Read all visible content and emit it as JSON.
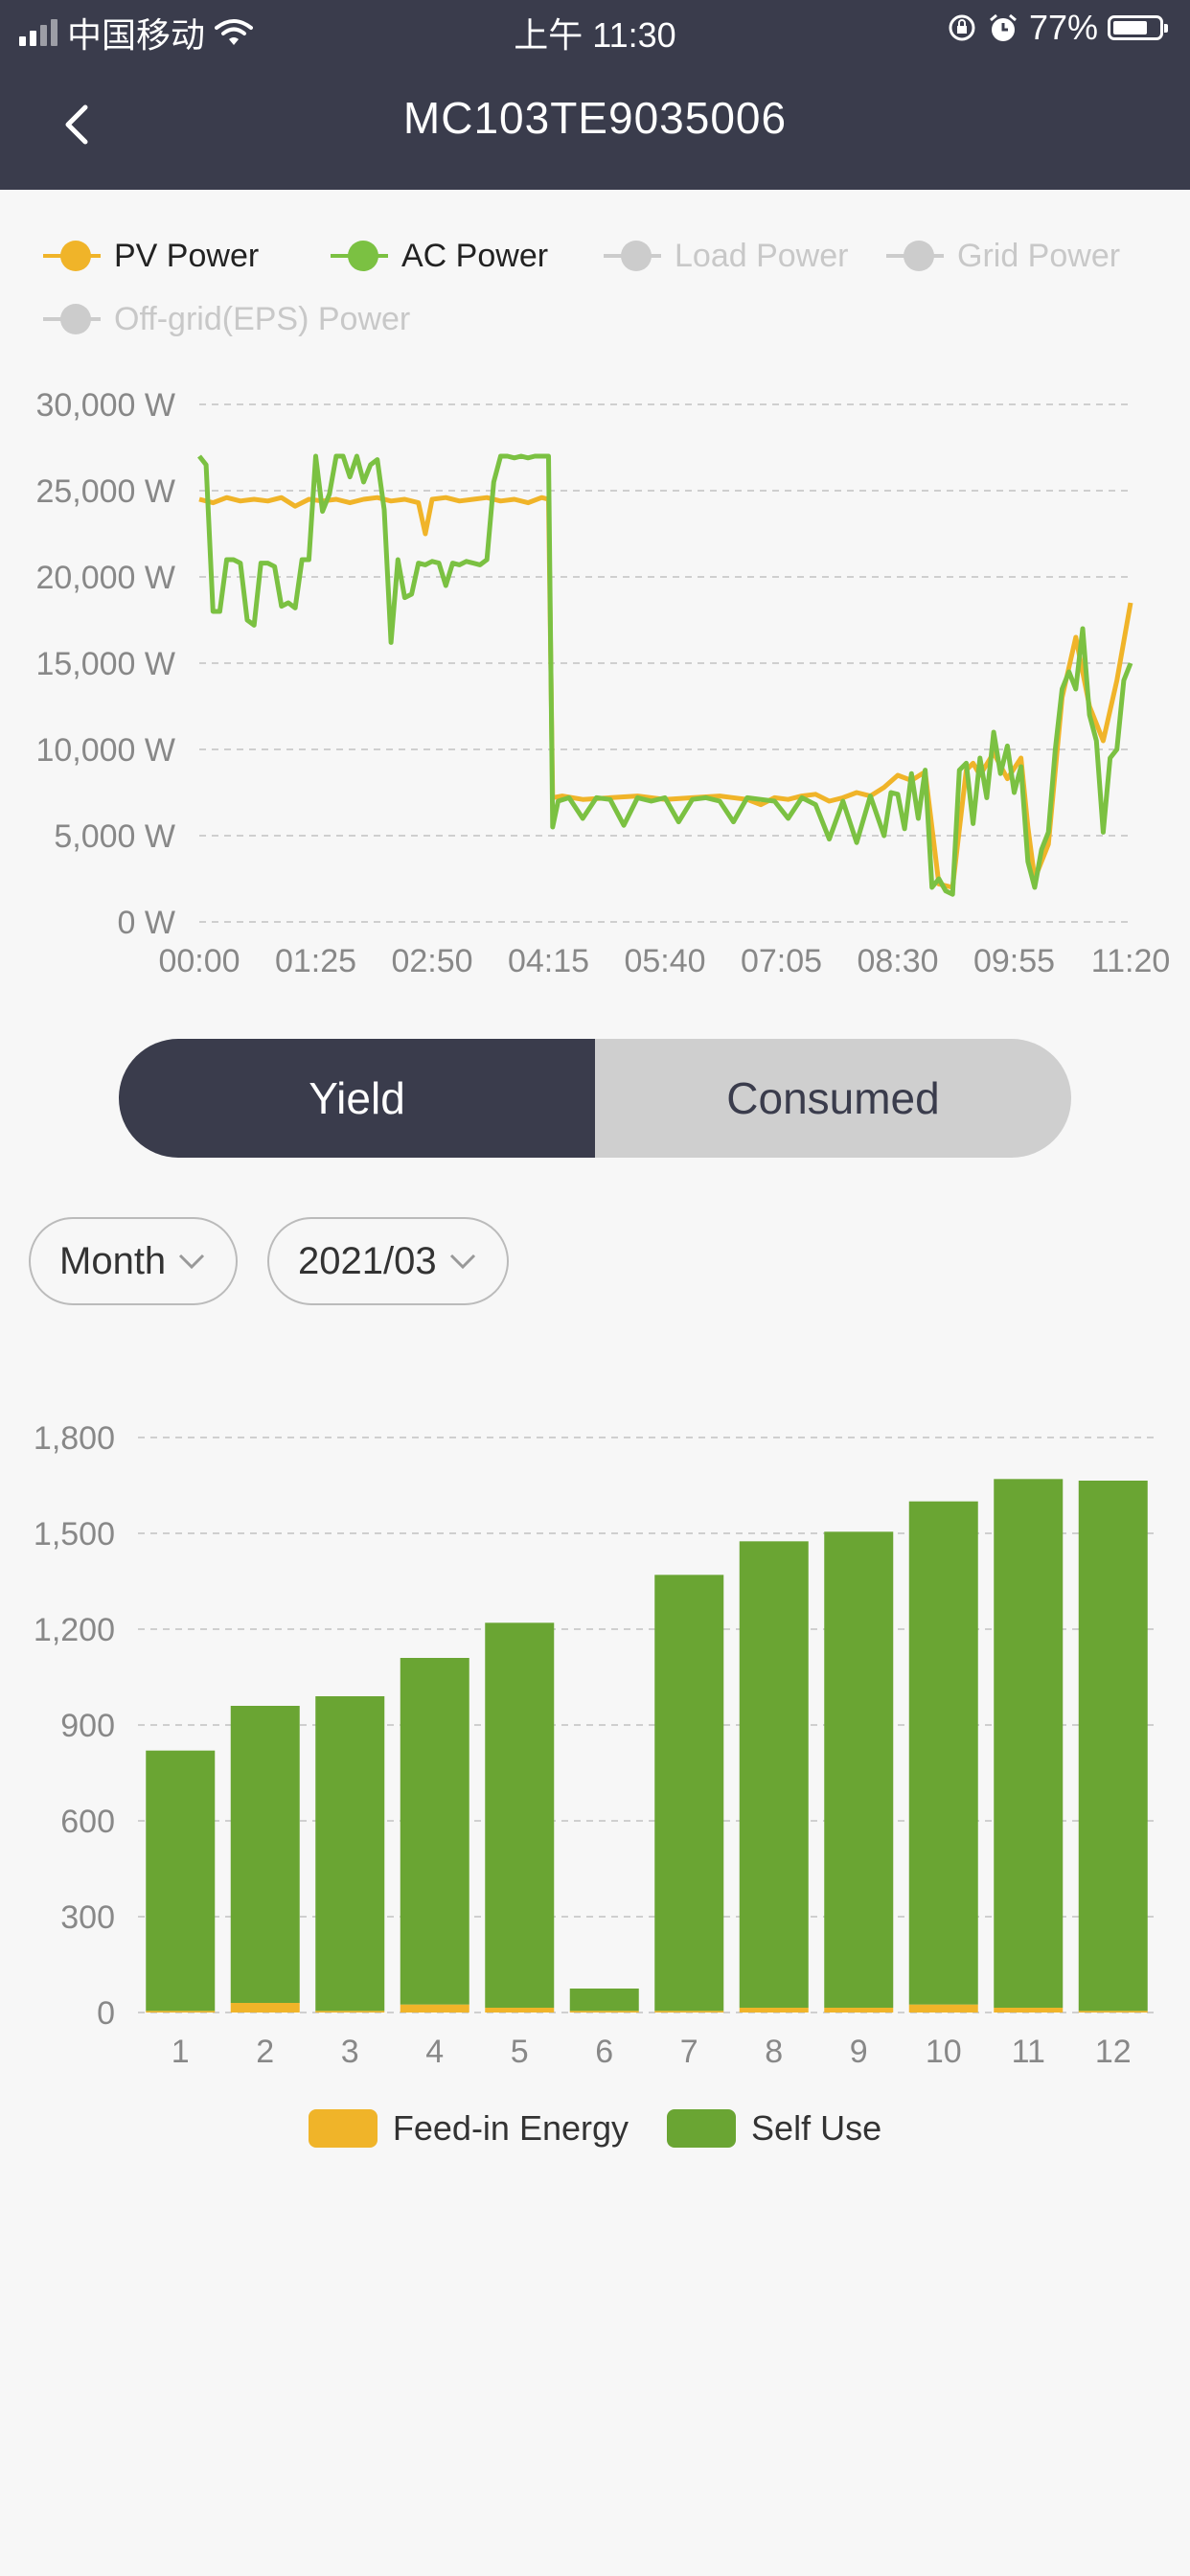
{
  "status_bar": {
    "carrier": "中国移动",
    "time": "上午 11:30",
    "battery": "77%",
    "battery_level": 0.77
  },
  "nav": {
    "title": "MC103TE9035006",
    "back_icon": "chevron-left-icon"
  },
  "power_chart": {
    "legend": [
      {
        "name": "PV Power",
        "color": "#f0b429",
        "active": true
      },
      {
        "name": "AC Power",
        "color": "#7bc142",
        "active": true
      },
      {
        "name": "Load Power",
        "color": "#cccccc",
        "active": false
      },
      {
        "name": "Grid Power",
        "color": "#cccccc",
        "active": false
      },
      {
        "name": "Off-grid(EPS) Power",
        "color": "#cccccc",
        "active": false
      }
    ]
  },
  "toggle": {
    "yield_label": "Yield",
    "consumed_label": "Consumed",
    "selected": "Yield"
  },
  "filters": {
    "period": "Month",
    "date": "2021/03"
  },
  "energy_chart": {
    "legend": [
      {
        "name": "Feed-in Energy",
        "color": "#f0b429"
      },
      {
        "name": "Self Use",
        "color": "#6aa533"
      }
    ]
  },
  "chart_data": [
    {
      "type": "line",
      "title": "",
      "xlabel": "",
      "ylabel": "",
      "x_ticks": [
        "00:00",
        "01:25",
        "02:50",
        "04:15",
        "05:40",
        "07:05",
        "08:30",
        "09:55",
        "11:20"
      ],
      "y_ticks": [
        "0 W",
        "5,000 W",
        "10,000 W",
        "15,000 W",
        "20,000 W",
        "25,000 W",
        "30,000 W"
      ],
      "ylim": [
        0,
        30000
      ],
      "x_range_minutes": [
        0,
        680
      ],
      "grid": true,
      "legend_position": "top-left",
      "series": [
        {
          "name": "PV Power",
          "color": "#f0b429",
          "x": [
            0,
            10,
            20,
            30,
            40,
            50,
            60,
            70,
            80,
            90,
            100,
            110,
            120,
            130,
            140,
            150,
            160,
            165,
            170,
            180,
            190,
            200,
            210,
            220,
            230,
            240,
            250,
            255,
            258,
            265,
            280,
            300,
            320,
            340,
            360,
            380,
            400,
            410,
            420,
            430,
            440,
            450,
            460,
            470,
            480,
            490,
            500,
            510,
            520,
            530,
            540,
            550,
            560,
            565,
            570,
            580,
            590,
            600,
            605,
            610,
            620,
            630,
            640,
            650,
            660,
            670,
            680
          ],
          "y": [
            24500,
            24300,
            24600,
            24400,
            24500,
            24400,
            24600,
            24100,
            24500,
            24400,
            24500,
            24300,
            24500,
            24600,
            24400,
            24500,
            24300,
            22500,
            24500,
            24600,
            24400,
            24500,
            24600,
            24400,
            24500,
            24300,
            24600,
            24500,
            7200,
            7300,
            7100,
            7200,
            7300,
            7100,
            7200,
            7300,
            7100,
            6800,
            7200,
            7100,
            7300,
            7400,
            7000,
            7200,
            7500,
            7300,
            7800,
            8500,
            8200,
            8700,
            2200,
            2000,
            8800,
            9200,
            8500,
            9800,
            8300,
            9500,
            5500,
            2500,
            4500,
            13000,
            16500,
            12500,
            10500,
            14000,
            18500
          ]
        },
        {
          "name": "AC Power",
          "color": "#7bc142",
          "x": [
            0,
            5,
            10,
            15,
            20,
            25,
            30,
            35,
            40,
            45,
            50,
            55,
            60,
            65,
            70,
            75,
            80,
            85,
            90,
            95,
            100,
            105,
            110,
            115,
            120,
            125,
            130,
            135,
            140,
            145,
            150,
            155,
            160,
            165,
            170,
            175,
            180,
            185,
            190,
            195,
            200,
            205,
            210,
            215,
            220,
            225,
            230,
            235,
            240,
            245,
            250,
            255,
            258,
            262,
            270,
            280,
            290,
            300,
            310,
            320,
            330,
            340,
            350,
            360,
            370,
            380,
            390,
            400,
            410,
            420,
            430,
            440,
            450,
            460,
            470,
            480,
            490,
            500,
            505,
            510,
            515,
            520,
            525,
            530,
            535,
            540,
            545,
            550,
            555,
            560,
            565,
            570,
            575,
            580,
            585,
            590,
            595,
            600,
            605,
            610,
            615,
            620,
            625,
            630,
            635,
            640,
            645,
            650,
            655,
            660,
            665,
            670,
            675,
            680
          ],
          "y": [
            27000,
            26500,
            18000,
            18000,
            21000,
            21000,
            20800,
            17500,
            17200,
            20800,
            20800,
            20600,
            18300,
            18500,
            18200,
            21000,
            21000,
            27000,
            23800,
            24800,
            27000,
            27000,
            25800,
            27000,
            25500,
            26500,
            26800,
            23900,
            16200,
            21000,
            18800,
            19000,
            20800,
            20700,
            20900,
            20800,
            19500,
            20800,
            20700,
            20900,
            20800,
            20700,
            21000,
            25500,
            27000,
            27000,
            26900,
            27000,
            26900,
            27000,
            27000,
            27000,
            5500,
            7000,
            7200,
            6000,
            7200,
            7100,
            5600,
            7200,
            7000,
            7200,
            5800,
            7100,
            7200,
            7000,
            5800,
            7200,
            7100,
            7000,
            6000,
            7200,
            6800,
            4800,
            7000,
            4600,
            7300,
            5000,
            7500,
            7400,
            5400,
            8600,
            6000,
            8800,
            2000,
            2500,
            1800,
            1600,
            8800,
            9200,
            5700,
            9500,
            7200,
            11000,
            8600,
            10200,
            7500,
            9000,
            3500,
            2000,
            4200,
            5200,
            10000,
            13500,
            14500,
            13500,
            17000,
            12000,
            10500,
            5200,
            9500,
            10000,
            14000,
            15000
          ]
        }
      ]
    },
    {
      "type": "bar",
      "title": "",
      "xlabel": "",
      "ylabel": "",
      "stacked": true,
      "categories": [
        "1",
        "2",
        "3",
        "4",
        "5",
        "6",
        "7",
        "8",
        "9",
        "10",
        "11",
        "12"
      ],
      "y_ticks": [
        "0",
        "300",
        "600",
        "900",
        "1,200",
        "1,500",
        "1,800"
      ],
      "ylim": [
        0,
        1800
      ],
      "grid": true,
      "legend_position": "bottom",
      "series": [
        {
          "name": "Feed-in Energy",
          "color": "#f0b429",
          "values": [
            5,
            30,
            5,
            25,
            15,
            5,
            5,
            15,
            15,
            25,
            15,
            5
          ]
        },
        {
          "name": "Self Use",
          "color": "#6aa533",
          "values": [
            815,
            930,
            985,
            1085,
            1205,
            70,
            1365,
            1460,
            1490,
            1575,
            1655,
            1660
          ]
        }
      ]
    }
  ]
}
